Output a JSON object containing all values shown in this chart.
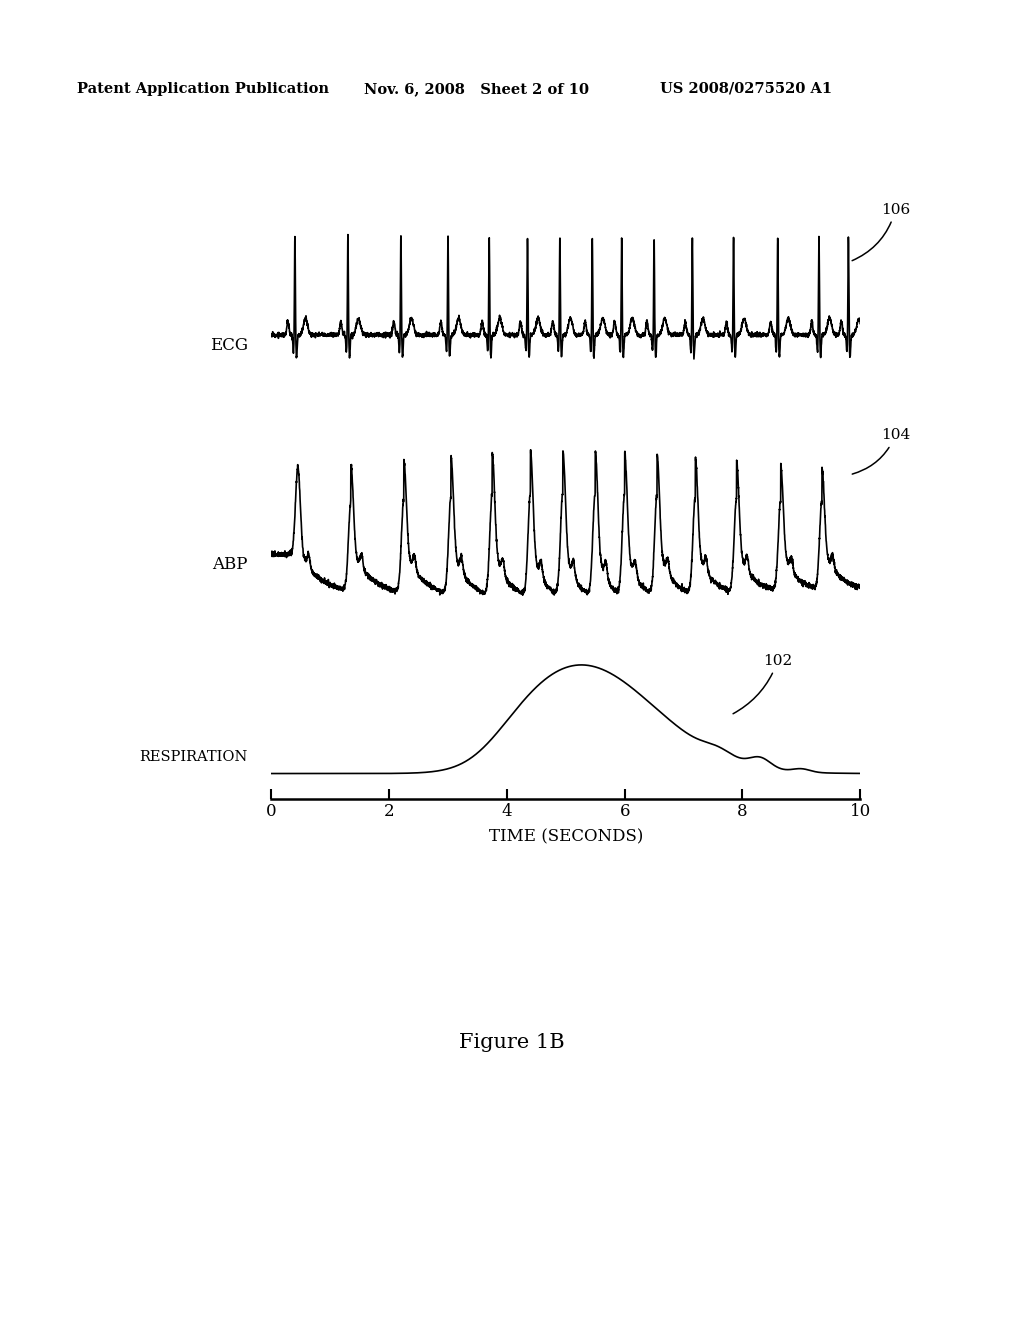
{
  "bg_color": "#ffffff",
  "header_left": "Patent Application Publication",
  "header_mid": "Nov. 6, 2008   Sheet 2 of 10",
  "header_right": "US 2008/0275520 A1",
  "figure_caption": "Figure 1B",
  "xlabel": "TIME (SECONDS)",
  "xticks": [
    0,
    2,
    4,
    6,
    8,
    10
  ],
  "label_ecg": "ECG",
  "label_abp": "ABP",
  "label_respiration": "RESPIRATION",
  "annotation_106": "106",
  "annotation_104": "104",
  "annotation_102": "102",
  "line_color": "#000000",
  "line_width": 1.2
}
